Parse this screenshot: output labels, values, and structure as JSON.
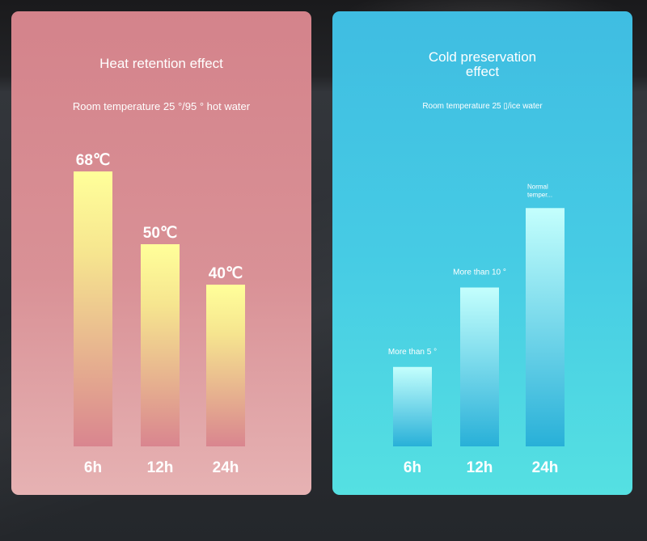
{
  "colors": {
    "heat_panel": "#d4838b",
    "heat_bar_top": "#ffff9a",
    "heat_bar_bottom": "#d9858f",
    "cold_panel": "#46cbe4",
    "cold_bar_top": "#c4fffd",
    "cold_bar_bottom": "#28b0d8"
  },
  "chart_data": [
    {
      "type": "bar",
      "title": "Heat retention effect",
      "subtitle": "Room temperature 25 °/95 ° hot water",
      "categories": [
        "6h",
        "12h",
        "24h"
      ],
      "values": [
        68,
        50,
        40
      ],
      "value_labels": [
        "68℃",
        "50℃",
        "40℃"
      ],
      "ylim": [
        0,
        70
      ],
      "grid": false,
      "legend": "none"
    },
    {
      "type": "bar",
      "title": "Cold preservation\neffect",
      "subtitle": "Room temperature 25 ▯/ice water",
      "categories": [
        "6h",
        "12h",
        "24h"
      ],
      "values": [
        5,
        10,
        15
      ],
      "value_labels": [
        "More than 5 °",
        "More than 10 °",
        "Normal\ntemper..."
      ],
      "ylim": [
        0,
        17
      ],
      "grid": false,
      "legend": "none"
    }
  ]
}
